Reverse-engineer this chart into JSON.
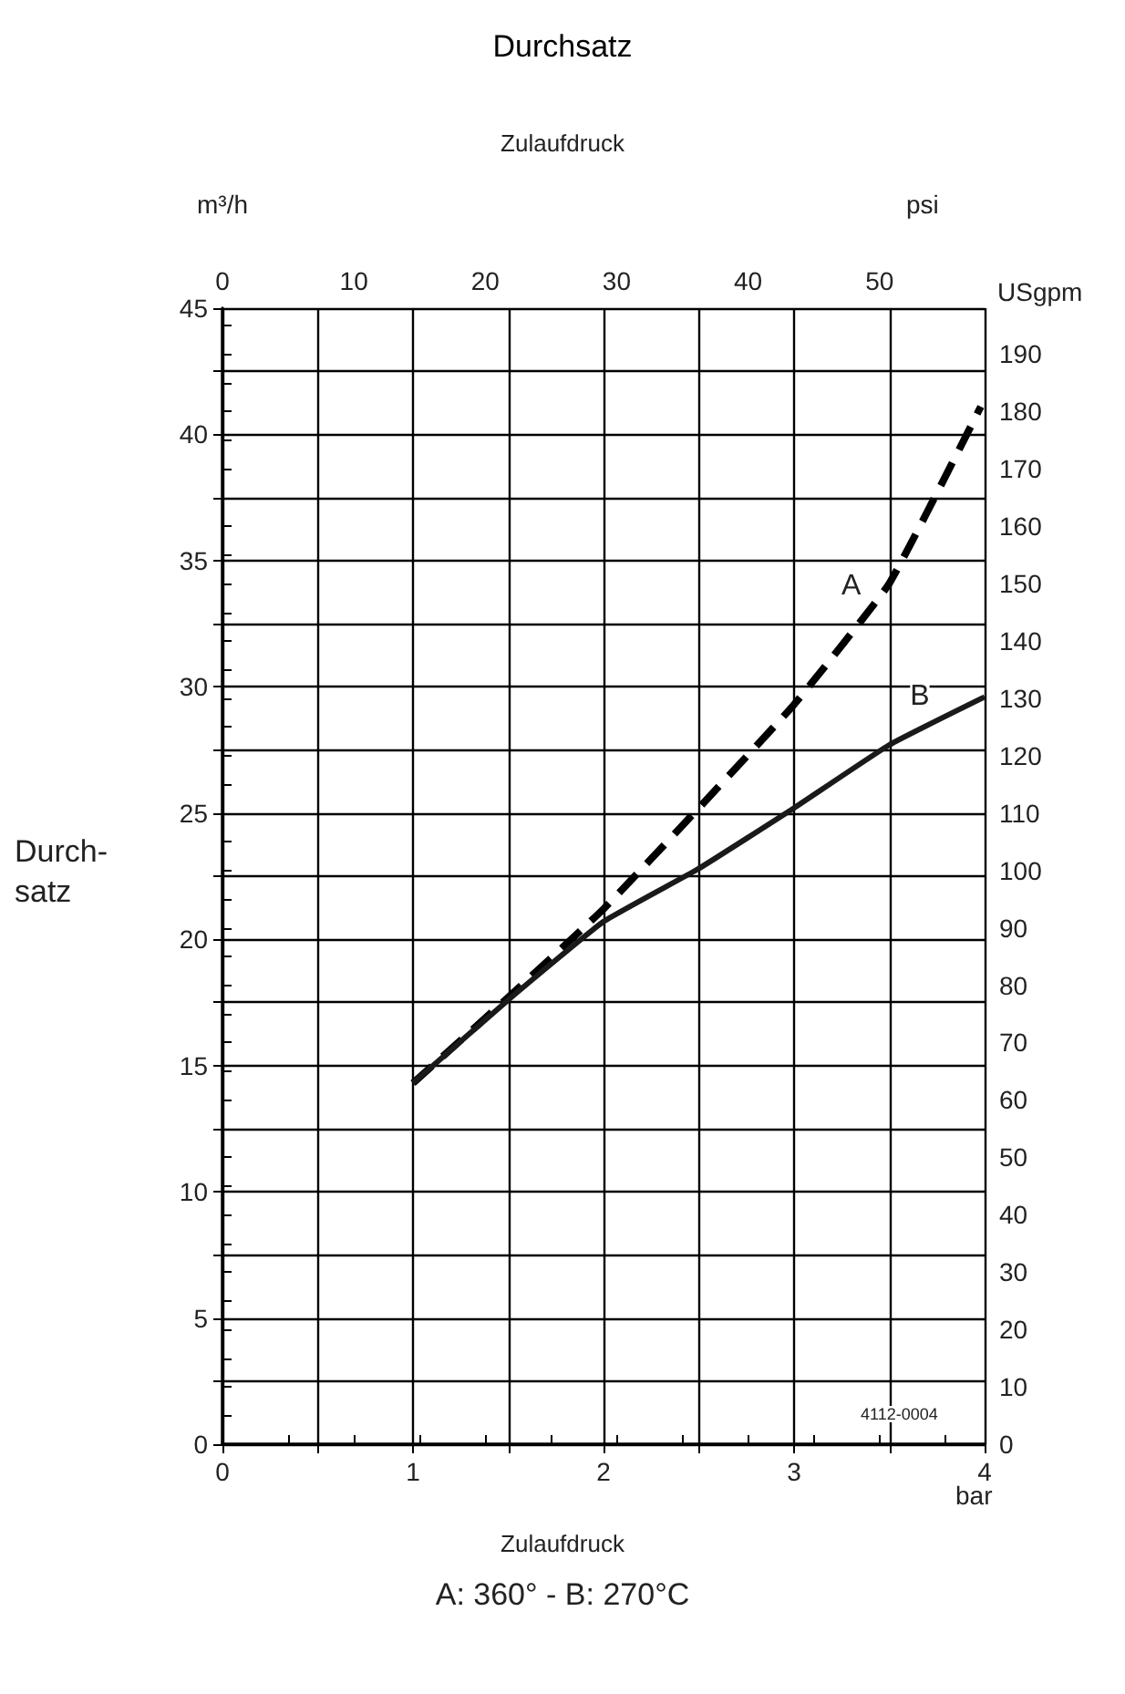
{
  "chart_data": {
    "type": "line",
    "title": "Durchsatz",
    "xlabel": "bar",
    "x2label": "psi",
    "ylabel": "m³/h",
    "y2label": "USgpm",
    "annotations": [
      "Zulaufdruck",
      "Zulaufdruck",
      "Durch-\nsatz",
      "4112-0004",
      "A: 360° - B: 270°C",
      {
        "text": "A",
        "x": 3.3,
        "y": 34.0
      },
      {
        "text": "B",
        "x": 3.66,
        "y": 29.6
      }
    ],
    "xlim": [
      0,
      4
    ],
    "xticks": [
      0,
      {
        "value": 0.5,
        "label": null
      },
      1,
      {
        "value": 1.5,
        "label": null
      },
      2,
      {
        "value": 2.5,
        "label": null
      },
      3,
      {
        "value": 3.5,
        "label": null
      },
      4
    ],
    "ylim": [
      0,
      45
    ],
    "yticks": [
      0,
      {
        "value": 2.5,
        "label": null
      },
      5,
      {
        "value": 7.5,
        "label": null
      },
      10,
      {
        "value": 12.5,
        "label": null
      },
      15,
      {
        "value": 17.5,
        "label": null
      },
      20,
      {
        "value": 22.5,
        "label": null
      },
      25,
      {
        "value": 27.5,
        "label": null
      },
      30,
      {
        "value": 32.5,
        "label": null
      },
      35,
      {
        "value": 37.5,
        "label": null
      },
      40,
      {
        "value": 42.5,
        "label": null
      },
      45
    ],
    "x2lim": [
      0,
      58
    ],
    "x2ticks": [
      0,
      {
        "value": 5,
        "label": null
      },
      10,
      {
        "value": 15,
        "label": null
      },
      20,
      {
        "value": 25,
        "label": null
      },
      30,
      {
        "value": 35,
        "label": null
      },
      40,
      {
        "value": 45,
        "label": null
      },
      50,
      {
        "value": 55,
        "label": null
      }
    ],
    "y2lim": [
      0,
      198
    ],
    "y2ticks": [
      0,
      {
        "value": 5,
        "label": null
      },
      10,
      {
        "value": 15,
        "label": null
      },
      20,
      {
        "value": 25,
        "label": null
      },
      30,
      {
        "value": 35,
        "label": null
      },
      40,
      {
        "value": 45,
        "label": null
      },
      50,
      {
        "value": 55,
        "label": null
      },
      60,
      {
        "value": 65,
        "label": null
      },
      70,
      {
        "value": 75,
        "label": null
      },
      80,
      {
        "value": 85,
        "label": null
      },
      90,
      {
        "value": 95,
        "label": null
      },
      100,
      {
        "value": 105,
        "label": null
      },
      110,
      {
        "value": 115,
        "label": null
      },
      120,
      {
        "value": 125,
        "label": null
      },
      130,
      {
        "value": 135,
        "label": null
      },
      140,
      {
        "value": 145,
        "label": null
      },
      150,
      {
        "value": 155,
        "label": null
      },
      160,
      {
        "value": 165,
        "label": null
      },
      170,
      {
        "value": 175,
        "label": null
      },
      180,
      {
        "value": 185,
        "label": null
      },
      190,
      {
        "value": 195,
        "label": null
      }
    ],
    "grid": true,
    "marker": "none",
    "series": [
      {
        "color": "#000000",
        "line_style": "dashed",
        "x": [
          1,
          1.5,
          2,
          2.5,
          3,
          3.5,
          3.98
        ],
        "values": [
          14.3,
          17.7,
          21.2,
          25.2,
          29.3,
          34.1,
          41.1
        ]
      },
      {
        "color": "#1a1a1a",
        "line_style": "solid",
        "x": [
          1,
          1.5,
          2,
          2.5,
          3,
          3.5,
          4
        ],
        "values": [
          14.3,
          17.6,
          20.7,
          22.8,
          25.2,
          27.7,
          29.6
        ]
      }
    ]
  }
}
